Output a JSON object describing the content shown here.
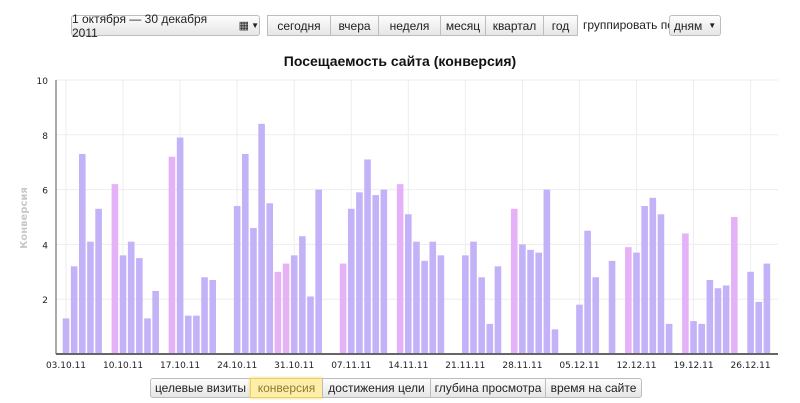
{
  "toolbar": {
    "date_range": "1 октября — 30 декабря 2011",
    "periods": [
      "сегодня",
      "вчера",
      "неделя",
      "месяц",
      "квартал",
      "год"
    ],
    "group_by_label": "группировать по",
    "group_by_value": "дням"
  },
  "tabs": [
    {
      "label": "целевые визиты",
      "active": false
    },
    {
      "label": "конверсия",
      "active": true
    },
    {
      "label": "достижения цели",
      "active": false
    },
    {
      "label": "глубина просмотра",
      "active": false
    },
    {
      "label": "время на сайте",
      "active": false
    }
  ],
  "chart_data": {
    "type": "bar",
    "title": "Посещаемость сайта (конверсия)",
    "ylabel": "Конверсия",
    "xlabel": "",
    "ylim": [
      0,
      10
    ],
    "yticks": [
      "2",
      "4",
      "6",
      "8",
      "10"
    ],
    "xticks": [
      "03.10.11",
      "10.10.11",
      "17.10.11",
      "24.10.11",
      "31.10.11",
      "07.11.11",
      "14.11.11",
      "21.11.11",
      "28.11.11",
      "05.12.11",
      "12.12.11",
      "19.12.11",
      "26.12.11"
    ],
    "grid": true,
    "colors": {
      "normal": "#c3b2f7",
      "highlight": "#e6b2f7"
    },
    "bars": [
      {
        "date": "03.10.11",
        "value": 1.3
      },
      {
        "date": "04.10.11",
        "value": 3.2
      },
      {
        "date": "05.10.11",
        "value": 7.3
      },
      {
        "date": "06.10.11",
        "value": 4.1
      },
      {
        "date": "07.10.11",
        "value": 5.3
      },
      {
        "date": "09.10.11",
        "value": 6.2,
        "highlight": true
      },
      {
        "date": "10.10.11",
        "value": 3.6
      },
      {
        "date": "11.10.11",
        "value": 4.1
      },
      {
        "date": "12.10.11",
        "value": 3.5
      },
      {
        "date": "13.10.11",
        "value": 1.3
      },
      {
        "date": "14.10.11",
        "value": 2.3
      },
      {
        "date": "16.10.11",
        "value": 7.2,
        "highlight": true
      },
      {
        "date": "17.10.11",
        "value": 7.9
      },
      {
        "date": "18.10.11",
        "value": 1.4
      },
      {
        "date": "19.10.11",
        "value": 1.4
      },
      {
        "date": "20.10.11",
        "value": 2.8
      },
      {
        "date": "21.10.11",
        "value": 2.7
      },
      {
        "date": "24.10.11",
        "value": 5.4
      },
      {
        "date": "25.10.11",
        "value": 7.3
      },
      {
        "date": "26.10.11",
        "value": 4.6
      },
      {
        "date": "27.10.11",
        "value": 8.4
      },
      {
        "date": "28.10.11",
        "value": 5.5
      },
      {
        "date": "29.10.11",
        "value": 3.0,
        "highlight": true
      },
      {
        "date": "30.10.11",
        "value": 3.3,
        "highlight": true
      },
      {
        "date": "31.10.11",
        "value": 3.6
      },
      {
        "date": "01.11.11",
        "value": 4.3
      },
      {
        "date": "02.11.11",
        "value": 2.1
      },
      {
        "date": "03.11.11",
        "value": 6.0
      },
      {
        "date": "06.11.11",
        "value": 3.3,
        "highlight": true
      },
      {
        "date": "07.11.11",
        "value": 5.3
      },
      {
        "date": "08.11.11",
        "value": 5.9
      },
      {
        "date": "09.11.11",
        "value": 7.1
      },
      {
        "date": "10.11.11",
        "value": 5.8
      },
      {
        "date": "11.11.11",
        "value": 6.0
      },
      {
        "date": "13.11.11",
        "value": 6.2,
        "highlight": true
      },
      {
        "date": "14.11.11",
        "value": 5.1
      },
      {
        "date": "15.11.11",
        "value": 4.1
      },
      {
        "date": "16.11.11",
        "value": 3.4
      },
      {
        "date": "17.11.11",
        "value": 4.1
      },
      {
        "date": "18.11.11",
        "value": 3.6
      },
      {
        "date": "21.11.11",
        "value": 3.6
      },
      {
        "date": "22.11.11",
        "value": 4.1
      },
      {
        "date": "23.11.11",
        "value": 2.8
      },
      {
        "date": "24.11.11",
        "value": 1.1
      },
      {
        "date": "25.11.11",
        "value": 3.2
      },
      {
        "date": "27.11.11",
        "value": 5.3,
        "highlight": true
      },
      {
        "date": "28.11.11",
        "value": 4.0
      },
      {
        "date": "29.11.11",
        "value": 3.8
      },
      {
        "date": "30.11.11",
        "value": 3.7
      },
      {
        "date": "01.12.11",
        "value": 6.0
      },
      {
        "date": "02.12.11",
        "value": 0.9
      },
      {
        "date": "05.12.11",
        "value": 1.8
      },
      {
        "date": "06.12.11",
        "value": 4.5
      },
      {
        "date": "07.12.11",
        "value": 2.8
      },
      {
        "date": "09.12.11",
        "value": 3.4
      },
      {
        "date": "11.12.11",
        "value": 3.9,
        "highlight": true
      },
      {
        "date": "12.12.11",
        "value": 3.7
      },
      {
        "date": "13.12.11",
        "value": 5.4
      },
      {
        "date": "14.12.11",
        "value": 5.7
      },
      {
        "date": "15.12.11",
        "value": 5.1
      },
      {
        "date": "16.12.11",
        "value": 1.1
      },
      {
        "date": "18.12.11",
        "value": 4.4,
        "highlight": true
      },
      {
        "date": "19.12.11",
        "value": 1.2
      },
      {
        "date": "20.12.11",
        "value": 1.1
      },
      {
        "date": "21.12.11",
        "value": 2.7
      },
      {
        "date": "22.12.11",
        "value": 2.4
      },
      {
        "date": "23.12.11",
        "value": 2.5
      },
      {
        "date": "24.12.11",
        "value": 5.0,
        "highlight": true
      },
      {
        "date": "26.12.11",
        "value": 3.0
      },
      {
        "date": "27.12.11",
        "value": 1.9
      },
      {
        "date": "28.12.11",
        "value": 3.3
      }
    ]
  }
}
